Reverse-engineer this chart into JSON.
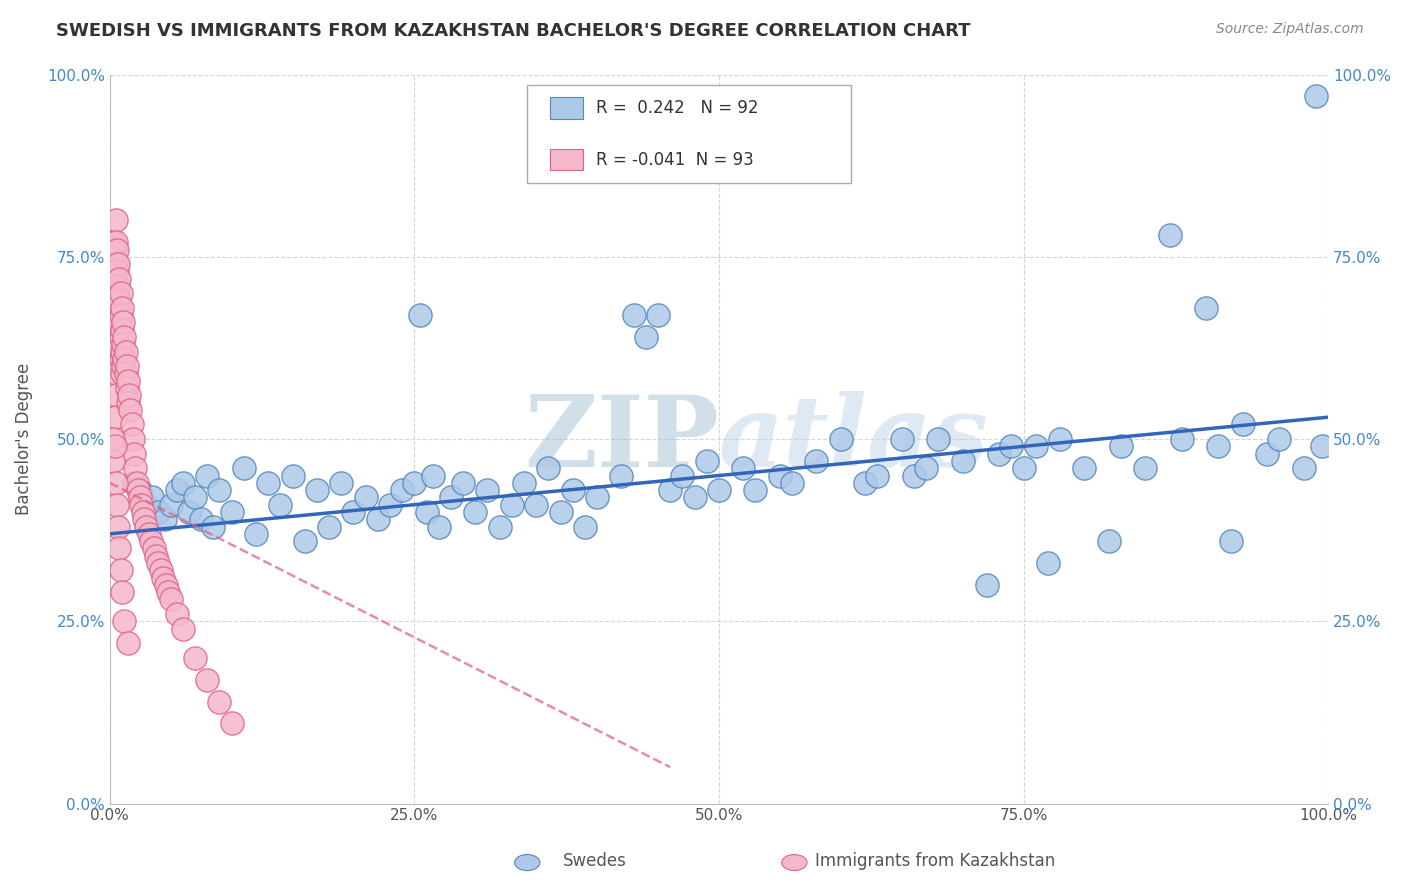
{
  "title": "SWEDISH VS IMMIGRANTS FROM KAZAKHSTAN BACHELOR'S DEGREE CORRELATION CHART",
  "source": "Source: ZipAtlas.com",
  "ylabel": "Bachelor's Degree",
  "xlim": [
    0.0,
    1.0
  ],
  "ylim": [
    0.0,
    1.0
  ],
  "xtick_labels": [
    "0.0%",
    "25.0%",
    "50.0%",
    "75.0%",
    "100.0%"
  ],
  "xtick_vals": [
    0.0,
    0.25,
    0.5,
    0.75,
    1.0
  ],
  "ytick_labels": [
    "0.0%",
    "25.0%",
    "50.0%",
    "75.0%",
    "100.0%"
  ],
  "ytick_vals": [
    0.0,
    0.25,
    0.5,
    0.75,
    1.0
  ],
  "blue_R": 0.242,
  "blue_N": 92,
  "pink_R": -0.041,
  "pink_N": 93,
  "blue_color": "#adc9e8",
  "blue_edge": "#5588bb",
  "pink_color": "#f5b8cb",
  "pink_edge": "#dd6688",
  "blue_line_color": "#3366bb",
  "pink_line_color": "#dd6688",
  "legend_label_blue": "Swedes",
  "legend_label_pink": "Immigrants from Kazakhstan",
  "watermark": "ZIPatlas",
  "watermark_color": "#c5d8ea",
  "blue_line_x0": 0.0,
  "blue_line_x1": 1.0,
  "blue_line_y0": 0.37,
  "blue_line_y1": 0.53,
  "pink_line_x0": 0.0,
  "pink_line_x1": 0.46,
  "pink_line_y0": 0.44,
  "pink_line_y1": 0.05,
  "blue_scatter_x": [
    0.02,
    0.025,
    0.03,
    0.035,
    0.04,
    0.045,
    0.05,
    0.055,
    0.06,
    0.065,
    0.07,
    0.075,
    0.08,
    0.085,
    0.09,
    0.1,
    0.11,
    0.12,
    0.13,
    0.14,
    0.15,
    0.16,
    0.17,
    0.18,
    0.19,
    0.2,
    0.21,
    0.22,
    0.23,
    0.24,
    0.25,
    0.255,
    0.26,
    0.265,
    0.27,
    0.28,
    0.29,
    0.3,
    0.31,
    0.32,
    0.33,
    0.34,
    0.35,
    0.36,
    0.37,
    0.38,
    0.39,
    0.4,
    0.42,
    0.43,
    0.44,
    0.45,
    0.46,
    0.47,
    0.48,
    0.49,
    0.5,
    0.52,
    0.53,
    0.55,
    0.56,
    0.58,
    0.6,
    0.62,
    0.63,
    0.65,
    0.66,
    0.67,
    0.68,
    0.7,
    0.72,
    0.73,
    0.74,
    0.75,
    0.76,
    0.77,
    0.78,
    0.8,
    0.82,
    0.83,
    0.85,
    0.87,
    0.88,
    0.9,
    0.91,
    0.92,
    0.93,
    0.95,
    0.96,
    0.98,
    0.99,
    0.995
  ],
  "blue_scatter_y": [
    0.44,
    0.43,
    0.41,
    0.42,
    0.4,
    0.39,
    0.41,
    0.43,
    0.44,
    0.4,
    0.42,
    0.39,
    0.45,
    0.38,
    0.43,
    0.4,
    0.46,
    0.37,
    0.44,
    0.41,
    0.45,
    0.36,
    0.43,
    0.38,
    0.44,
    0.4,
    0.42,
    0.39,
    0.41,
    0.43,
    0.44,
    0.67,
    0.4,
    0.45,
    0.38,
    0.42,
    0.44,
    0.4,
    0.43,
    0.38,
    0.41,
    0.44,
    0.41,
    0.46,
    0.4,
    0.43,
    0.38,
    0.42,
    0.45,
    0.67,
    0.64,
    0.67,
    0.43,
    0.45,
    0.42,
    0.47,
    0.43,
    0.46,
    0.43,
    0.45,
    0.44,
    0.47,
    0.5,
    0.44,
    0.45,
    0.5,
    0.45,
    0.46,
    0.5,
    0.47,
    0.3,
    0.48,
    0.49,
    0.46,
    0.49,
    0.33,
    0.5,
    0.46,
    0.36,
    0.49,
    0.46,
    0.78,
    0.5,
    0.68,
    0.49,
    0.36,
    0.52,
    0.48,
    0.5,
    0.46,
    0.97,
    0.49
  ],
  "pink_scatter_x": [
    0.003,
    0.003,
    0.003,
    0.003,
    0.003,
    0.004,
    0.004,
    0.004,
    0.004,
    0.004,
    0.005,
    0.005,
    0.005,
    0.005,
    0.005,
    0.005,
    0.005,
    0.005,
    0.005,
    0.005,
    0.006,
    0.006,
    0.006,
    0.006,
    0.006,
    0.007,
    0.007,
    0.007,
    0.007,
    0.007,
    0.008,
    0.008,
    0.008,
    0.008,
    0.009,
    0.009,
    0.009,
    0.009,
    0.01,
    0.01,
    0.01,
    0.01,
    0.011,
    0.011,
    0.011,
    0.012,
    0.012,
    0.013,
    0.013,
    0.014,
    0.014,
    0.015,
    0.015,
    0.016,
    0.017,
    0.018,
    0.019,
    0.02,
    0.021,
    0.022,
    0.023,
    0.025,
    0.026,
    0.027,
    0.028,
    0.03,
    0.032,
    0.034,
    0.036,
    0.038,
    0.04,
    0.042,
    0.044,
    0.046,
    0.048,
    0.05,
    0.055,
    0.06,
    0.07,
    0.08,
    0.09,
    0.1,
    0.003,
    0.003,
    0.004,
    0.005,
    0.006,
    0.007,
    0.008,
    0.009,
    0.01,
    0.012,
    0.015
  ],
  "pink_scatter_y": [
    0.77,
    0.74,
    0.72,
    0.7,
    0.68,
    0.76,
    0.74,
    0.71,
    0.68,
    0.65,
    0.8,
    0.77,
    0.74,
    0.71,
    0.68,
    0.65,
    0.62,
    0.59,
    0.56,
    0.53,
    0.76,
    0.73,
    0.7,
    0.67,
    0.64,
    0.74,
    0.71,
    0.68,
    0.65,
    0.62,
    0.72,
    0.69,
    0.66,
    0.63,
    0.7,
    0.67,
    0.64,
    0.61,
    0.68,
    0.65,
    0.62,
    0.59,
    0.66,
    0.63,
    0.6,
    0.64,
    0.61,
    0.62,
    0.59,
    0.6,
    0.57,
    0.58,
    0.55,
    0.56,
    0.54,
    0.52,
    0.5,
    0.48,
    0.46,
    0.44,
    0.43,
    0.42,
    0.41,
    0.4,
    0.39,
    0.38,
    0.37,
    0.36,
    0.35,
    0.34,
    0.33,
    0.32,
    0.31,
    0.3,
    0.29,
    0.28,
    0.26,
    0.24,
    0.2,
    0.17,
    0.14,
    0.11,
    0.5,
    0.47,
    0.49,
    0.44,
    0.41,
    0.38,
    0.35,
    0.32,
    0.29,
    0.25,
    0.22
  ]
}
